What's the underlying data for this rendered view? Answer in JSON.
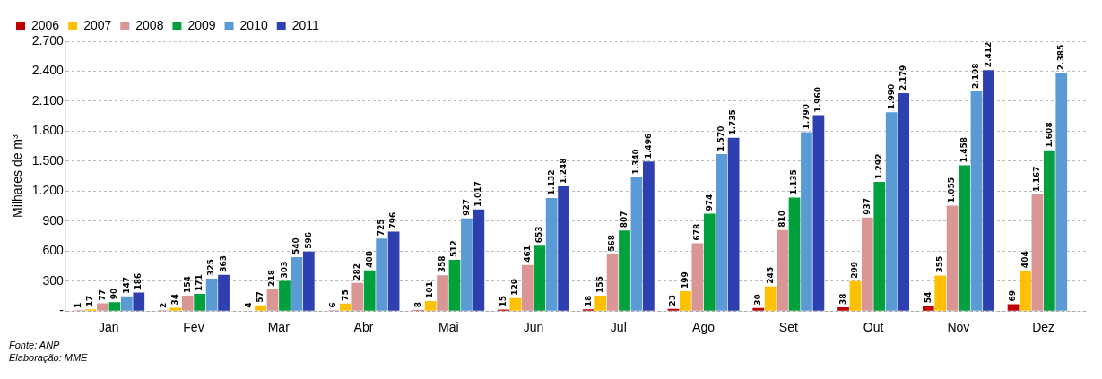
{
  "chart_data": {
    "type": "bar",
    "ylabel": "Milhares de m³",
    "categories": [
      "Jan",
      "Fev",
      "Mar",
      "Abr",
      "Mai",
      "Jun",
      "Jul",
      "Ago",
      "Set",
      "Out",
      "Nov",
      "Dez"
    ],
    "series": [
      {
        "name": "2006",
        "color": "#c00000",
        "values": [
          1,
          2,
          4,
          6,
          8,
          15,
          18,
          23,
          30,
          38,
          54,
          69
        ],
        "value_labels": [
          "1",
          "2",
          "4",
          "6",
          "8",
          "15",
          "18",
          "23",
          "30",
          "38",
          "54",
          "69"
        ]
      },
      {
        "name": "2007",
        "color": "#ffc000",
        "values": [
          17,
          34,
          57,
          75,
          101,
          129,
          155,
          199,
          245,
          299,
          355,
          404
        ],
        "value_labels": [
          "17",
          "34",
          "57",
          "75",
          "101",
          "129",
          "155",
          "199",
          "245",
          "299",
          "355",
          "404"
        ]
      },
      {
        "name": "2008",
        "color": "#d99694",
        "values": [
          77,
          154,
          218,
          282,
          358,
          461,
          568,
          678,
          810,
          937,
          1055,
          1167
        ],
        "value_labels": [
          "77",
          "154",
          "218",
          "282",
          "358",
          "461",
          "568",
          "678",
          "810",
          "937",
          "1.055",
          "1.167"
        ]
      },
      {
        "name": "2009",
        "color": "#00a03c",
        "values": [
          90,
          171,
          303,
          408,
          512,
          653,
          807,
          974,
          1135,
          1292,
          1458,
          1608
        ],
        "value_labels": [
          "90",
          "171",
          "303",
          "408",
          "512",
          "653",
          "807",
          "974",
          "1.135",
          "1.292",
          "1.458",
          "1.608"
        ]
      },
      {
        "name": "2010",
        "color": "#5b9bd5",
        "values": [
          147,
          325,
          540,
          725,
          927,
          1132,
          1340,
          1570,
          1790,
          1990,
          2198,
          2385
        ],
        "value_labels": [
          "147",
          "325",
          "540",
          "725",
          "927",
          "1.132",
          "1.340",
          "1.570",
          "1.790",
          "1.990",
          "2.198",
          "2.385"
        ]
      },
      {
        "name": "2011",
        "color": "#2e3fb0",
        "values": [
          186,
          363,
          596,
          796,
          1017,
          1248,
          1496,
          1735,
          1960,
          2179,
          2412,
          null
        ],
        "value_labels": [
          "186",
          "363",
          "596",
          "796",
          "1.017",
          "1.248",
          "1.496",
          "1.735",
          "1.960",
          "2.179",
          "2.412",
          null
        ]
      }
    ],
    "ylim": [
      0,
      2700
    ],
    "yticks": [
      {
        "value": 0,
        "label": "-"
      },
      300,
      600,
      900,
      {
        "value": 1200,
        "label": "1.200"
      },
      {
        "value": 1500,
        "label": "1.500"
      },
      {
        "value": 1800,
        "label": "1.800"
      },
      {
        "value": 2100,
        "label": "2.100"
      },
      {
        "value": 2400,
        "label": "2.400"
      },
      {
        "value": 2700,
        "label": "2.700"
      }
    ],
    "grid": "y",
    "legend": "top left",
    "annotations": [
      "Fonte: ANP",
      "Elaboração: MME"
    ]
  }
}
